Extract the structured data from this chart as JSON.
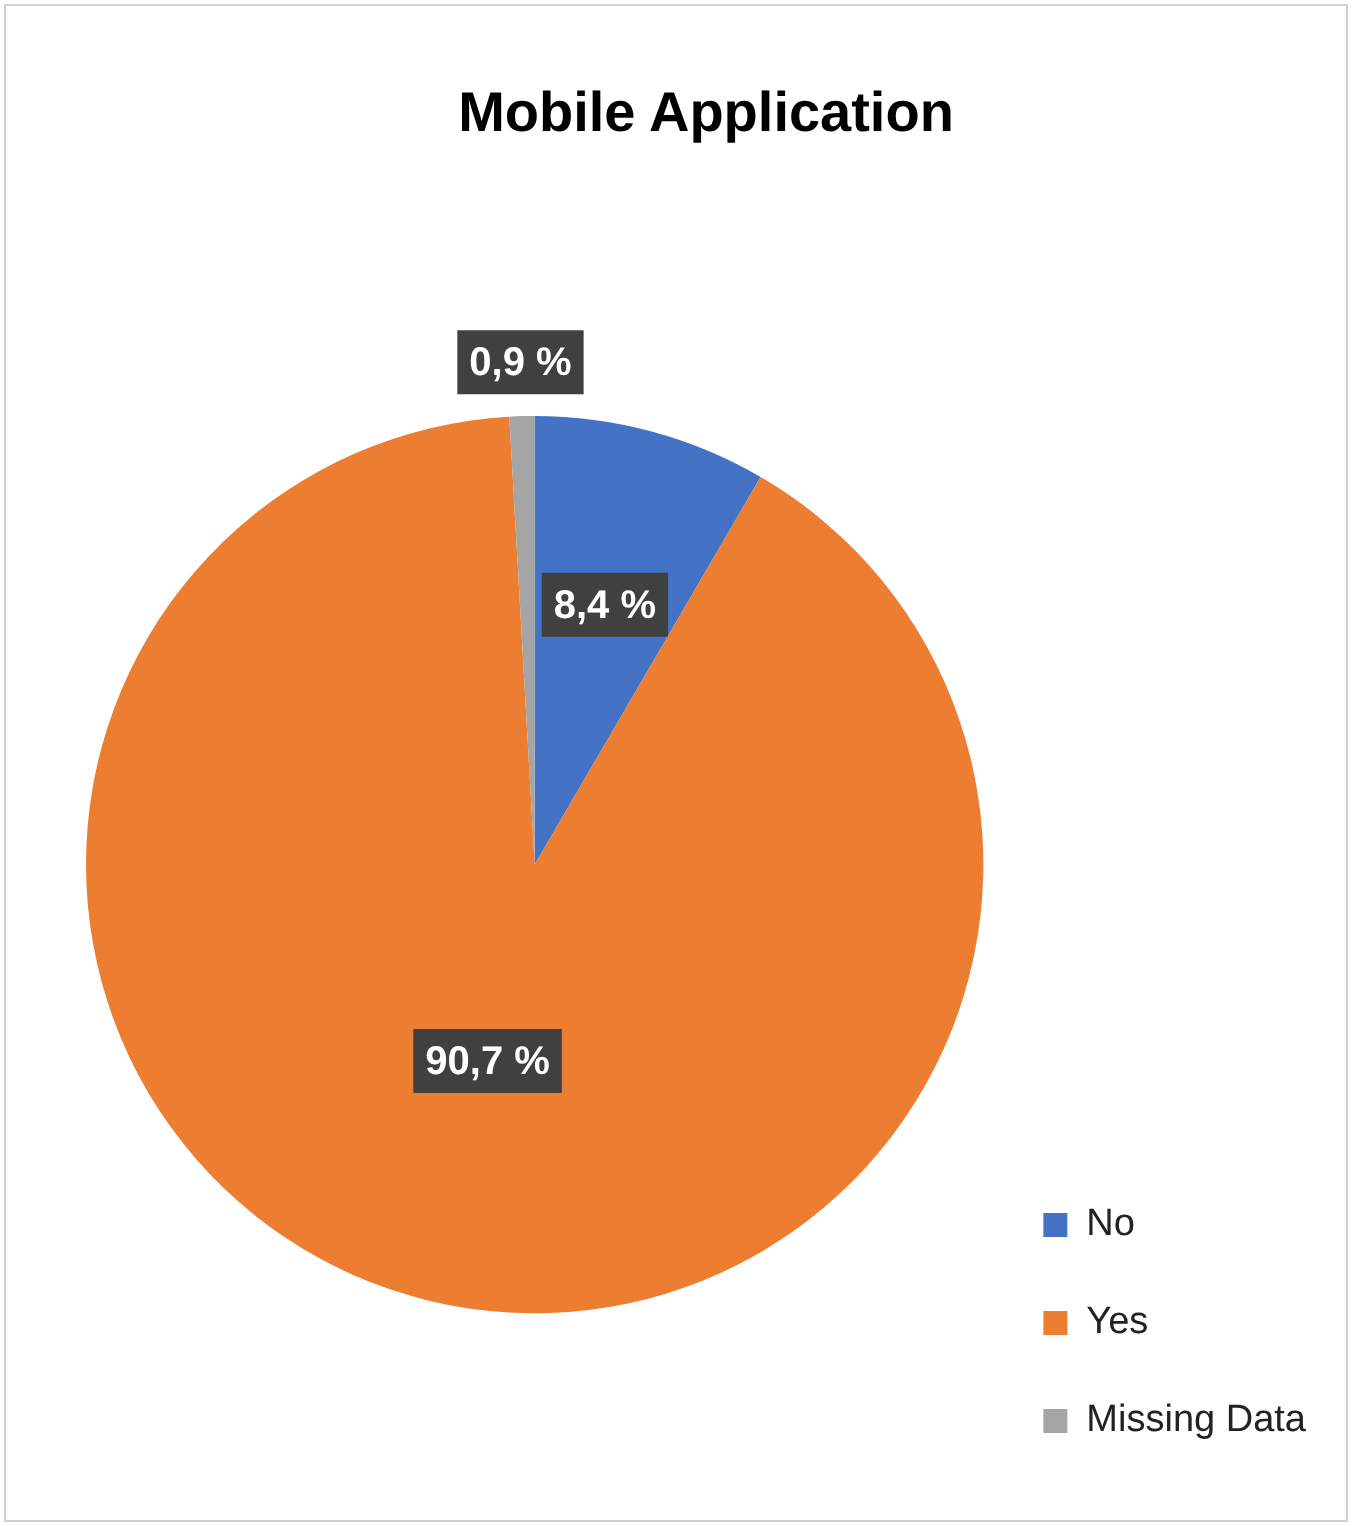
{
  "chart_data": {
    "type": "pie",
    "title": "Mobile Application",
    "categories": [
      "No",
      "Yes",
      "Missing Data"
    ],
    "values": [
      8.4,
      90.7,
      0.9
    ],
    "colors": [
      "#4472c4",
      "#ed7d31",
      "#a5a5a5"
    ],
    "value_labels": [
      "8,4 %",
      "90,7 %",
      "0,9 %"
    ],
    "legend": "bottom right"
  }
}
